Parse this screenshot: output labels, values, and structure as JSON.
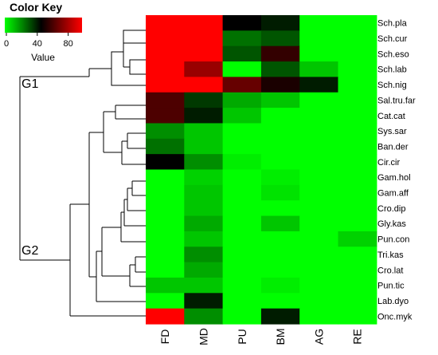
{
  "chart_data": {
    "type": "heatmap",
    "title": "",
    "xlabel": "",
    "ylabel": "",
    "columns": [
      "FD",
      "MD",
      "PU",
      "BM",
      "AG",
      "RE"
    ],
    "rows": [
      "Sch.pla",
      "Sch.cur",
      "Sch.eso",
      "Sch.lab",
      "Sch.nig",
      "Sal.tru.far",
      "Cat.cat",
      "Sys.sar",
      "Ban.der",
      "Cir.cir",
      "Gam.hol",
      "Gam.aff",
      "Cro.dip",
      "Gly.kas",
      "Pun.con",
      "Tri.kas",
      "Cro.lat",
      "Pun.tic",
      "Lab.dyo",
      "Onc.myk"
    ],
    "values": [
      [
        95,
        95,
        45,
        40,
        0,
        0
      ],
      [
        95,
        95,
        25,
        30,
        0,
        0
      ],
      [
        95,
        95,
        30,
        55,
        0,
        0
      ],
      [
        95,
        75,
        0,
        30,
        10,
        0
      ],
      [
        95,
        95,
        65,
        50,
        40,
        0
      ],
      [
        60,
        35,
        15,
        10,
        0,
        0
      ],
      [
        60,
        40,
        10,
        0,
        0,
        0
      ],
      [
        20,
        10,
        0,
        0,
        0,
        0
      ],
      [
        25,
        10,
        0,
        0,
        0,
        0
      ],
      [
        45,
        20,
        3,
        0,
        0,
        0
      ],
      [
        0,
        8,
        0,
        3,
        0,
        0
      ],
      [
        0,
        10,
        0,
        5,
        0,
        0
      ],
      [
        0,
        10,
        0,
        0,
        0,
        0
      ],
      [
        0,
        15,
        0,
        10,
        0,
        0
      ],
      [
        0,
        10,
        0,
        0,
        0,
        8
      ],
      [
        0,
        20,
        0,
        0,
        0,
        0
      ],
      [
        0,
        15,
        0,
        0,
        0,
        0
      ],
      [
        10,
        10,
        0,
        3,
        0,
        0
      ],
      [
        0,
        40,
        0,
        0,
        0,
        0
      ],
      [
        95,
        20,
        0,
        40,
        0,
        0
      ]
    ],
    "color_scale": {
      "min": 0,
      "mid": 45,
      "max": 95,
      "colors": [
        "#00ff00",
        "#000000",
        "#ff0000"
      ]
    },
    "color_key": {
      "title": "Color Key",
      "ticks": [
        0,
        40,
        80
      ],
      "axis_label": "Value"
    },
    "groups": [
      {
        "label": "G1",
        "rows": [
          "Sch.pla",
          "Sch.cur",
          "Sch.eso",
          "Sch.lab",
          "Sch.nig"
        ]
      },
      {
        "label": "G2",
        "rows": [
          "Sal.tru.far",
          "Cat.cat",
          "Sys.sar",
          "Ban.der",
          "Cir.cir",
          "Gam.hol",
          "Gam.aff",
          "Cro.dip",
          "Gly.kas",
          "Pun.con",
          "Tri.kas",
          "Cro.lat",
          "Pun.tic",
          "Lab.dyo",
          "Onc.myk"
        ]
      }
    ]
  }
}
